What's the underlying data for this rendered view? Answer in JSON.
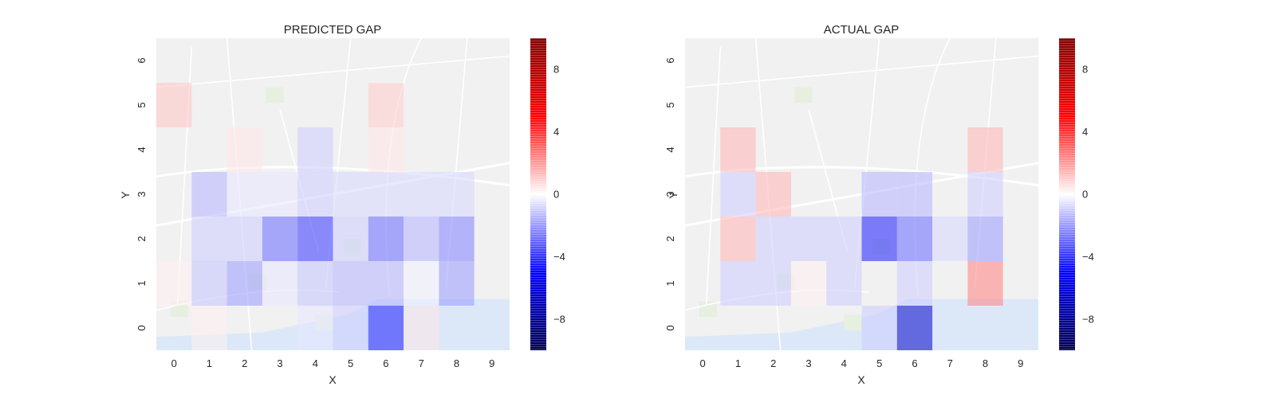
{
  "chart_data": [
    {
      "type": "heatmap",
      "title": "PREDICTED GAP",
      "xlabel": "X",
      "ylabel": "Y",
      "x": [
        0,
        1,
        2,
        3,
        4,
        5,
        6,
        7,
        8,
        9
      ],
      "y": [
        0,
        1,
        2,
        3,
        4,
        5,
        6
      ],
      "colorbar": {
        "range": [
          -10,
          10
        ],
        "ticks": [
          8,
          4,
          0,
          -4,
          -8
        ],
        "tick_labels": [
          "8",
          "4",
          "0",
          "−4",
          "−8"
        ],
        "colormap": "seismic"
      },
      "background": "street map",
      "values": [
        [
          0.0,
          0.3,
          0.0,
          0.0,
          -0.5,
          -1.0,
          -4.5,
          0.5,
          0.0,
          0.0
        ],
        [
          0.3,
          -1.2,
          -2.0,
          -0.5,
          -1.2,
          -1.5,
          -1.5,
          -0.3,
          -2.0,
          0.0
        ],
        [
          0.0,
          -1.0,
          -1.0,
          -3.0,
          -4.0,
          -1.0,
          -3.0,
          -1.5,
          -2.5,
          0.0
        ],
        [
          0.0,
          -1.5,
          -0.5,
          -0.5,
          -1.0,
          -0.8,
          -0.8,
          -0.8,
          -0.8,
          0.0
        ],
        [
          0.0,
          0.0,
          0.5,
          0.0,
          -1.0,
          0.0,
          0.5,
          0.0,
          0.0,
          0.0
        ],
        [
          1.2,
          0.0,
          0.0,
          0.0,
          0.0,
          0.0,
          1.0,
          0.0,
          0.0,
          0.0
        ],
        [
          0.0,
          0.0,
          0.0,
          0.0,
          0.0,
          0.0,
          0.0,
          0.0,
          0.0,
          0.0
        ]
      ]
    },
    {
      "type": "heatmap",
      "title": "ACTUAL GAP",
      "xlabel": "X",
      "ylabel": "Y",
      "x": [
        0,
        1,
        2,
        3,
        4,
        5,
        6,
        7,
        8,
        9
      ],
      "y": [
        0,
        1,
        2,
        3,
        4,
        5,
        6
      ],
      "colorbar": {
        "range": [
          -10,
          10
        ],
        "ticks": [
          8,
          4,
          0,
          -4,
          -8
        ],
        "tick_labels": [
          "8",
          "4",
          "0",
          "−4",
          "−8"
        ],
        "colormap": "seismic"
      },
      "background": "street map",
      "values": [
        [
          0.0,
          0.0,
          0.0,
          0.0,
          0.0,
          -1.0,
          -6.5,
          0.0,
          0.0,
          0.0
        ],
        [
          0.0,
          -1.0,
          -1.0,
          0.3,
          -1.0,
          0.0,
          -1.0,
          0.0,
          2.5,
          0.0
        ],
        [
          0.0,
          1.5,
          -1.0,
          -1.0,
          -1.0,
          -4.5,
          -3.0,
          -0.8,
          -2.0,
          0.0
        ],
        [
          0.0,
          -1.0,
          1.5,
          0.0,
          0.0,
          -1.5,
          -1.5,
          0.0,
          -1.0,
          0.0
        ],
        [
          0.0,
          1.5,
          0.0,
          0.0,
          0.0,
          0.0,
          0.0,
          0.0,
          1.5,
          0.0
        ],
        [
          0.0,
          0.0,
          0.0,
          0.0,
          0.0,
          0.0,
          0.0,
          0.0,
          0.0,
          0.0
        ],
        [
          0.0,
          0.0,
          0.0,
          0.0,
          0.0,
          0.0,
          0.0,
          0.0,
          0.0,
          0.0
        ]
      ]
    }
  ]
}
